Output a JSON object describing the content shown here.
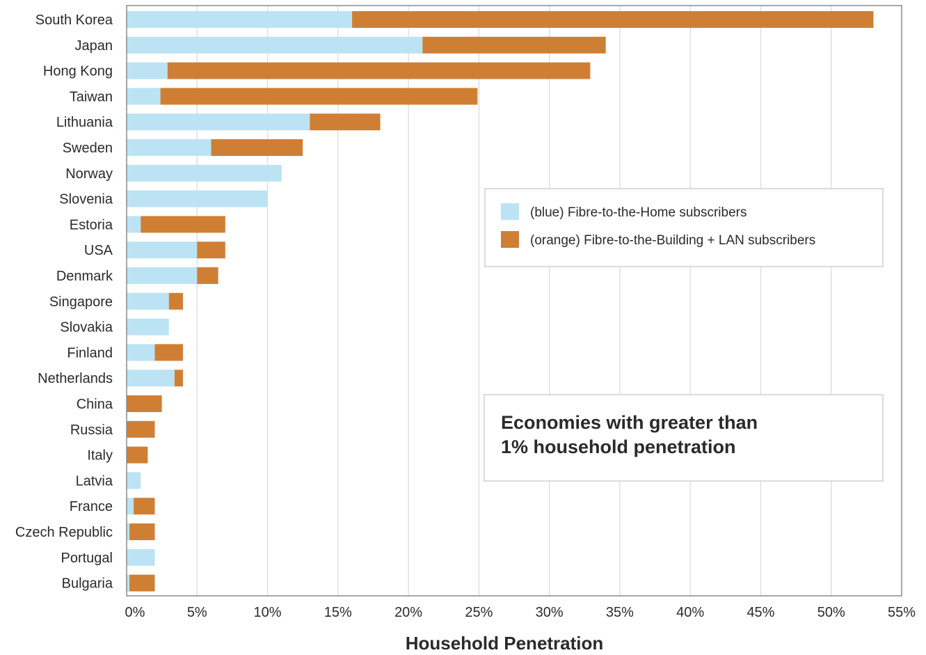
{
  "chart_data": {
    "type": "bar",
    "orientation": "horizontal",
    "stacked": true,
    "categories": [
      "South Korea",
      "Japan",
      "Hong Kong",
      "Taiwan",
      "Lithuania",
      "Sweden",
      "Norway",
      "Slovenia",
      "Estoria",
      "USA",
      "Denmark",
      "Singapore",
      "Slovakia",
      "Finland",
      "Netherlands",
      "China",
      "Russia",
      "Italy",
      "Latvia",
      "France",
      "Czech Republic",
      "Portugal",
      "Bulgaria"
    ],
    "series": [
      {
        "name": "(blue) Fibre-to-the-Home subscribers",
        "color": "#bce3f3",
        "values": [
          16,
          21,
          2.9,
          2.4,
          13,
          6,
          11,
          10,
          1,
          5,
          5,
          3,
          3,
          2,
          3.4,
          0,
          0,
          0,
          1,
          0.5,
          0.2,
          2,
          0.2
        ]
      },
      {
        "name": "(orange) Fibre-to-the-Building + LAN subscribers",
        "color": "#cf7f34",
        "values": [
          37,
          13,
          30,
          22.5,
          5,
          6.5,
          0,
          0,
          6,
          2,
          1.5,
          1,
          0,
          2,
          0.6,
          2.5,
          2,
          1.5,
          0,
          1.5,
          1.8,
          0,
          1.8
        ]
      }
    ],
    "xlabel": "Household Penetration",
    "ylabel": "",
    "xlim": [
      0,
      55
    ],
    "xticks": [
      "0%",
      "5%",
      "10%",
      "15%",
      "20%",
      "25%",
      "30%",
      "35%",
      "40%",
      "45%",
      "50%",
      "55%"
    ],
    "grid": true,
    "legend_position": "right-middle",
    "annotation": [
      "Economies with greater than",
      "1% household penetration"
    ]
  }
}
